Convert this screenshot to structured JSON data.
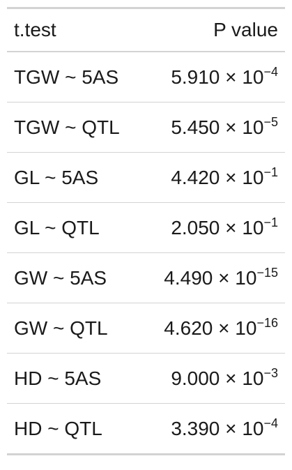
{
  "chart_data": {
    "type": "table",
    "columns": [
      "t.test",
      "P value"
    ],
    "rows": [
      {
        "test": "TGW ~ 5AS",
        "mantissa": "5.910",
        "times": "×",
        "base": "10",
        "exponent": "−4"
      },
      {
        "test": "TGW ~ QTL",
        "mantissa": "5.450",
        "times": "×",
        "base": "10",
        "exponent": "−5"
      },
      {
        "test": "GL ~ 5AS",
        "mantissa": "4.420",
        "times": "×",
        "base": "10",
        "exponent": "−1"
      },
      {
        "test": "GL ~ QTL",
        "mantissa": "2.050",
        "times": "×",
        "base": "10",
        "exponent": "−1"
      },
      {
        "test": "GW ~ 5AS",
        "mantissa": "4.490",
        "times": "×",
        "base": "10",
        "exponent": "−15"
      },
      {
        "test": "GW ~ QTL",
        "mantissa": "4.620",
        "times": "×",
        "base": "10",
        "exponent": "−16"
      },
      {
        "test": "HD ~ 5AS",
        "mantissa": "9.000",
        "times": "×",
        "base": "10",
        "exponent": "−3"
      },
      {
        "test": "HD ~ QTL",
        "mantissa": "3.390",
        "times": "×",
        "base": "10",
        "exponent": "−4"
      }
    ]
  },
  "colors": {
    "text": "#1a1a1a",
    "rule": "#d3d3d3",
    "background": "#ffffff"
  }
}
